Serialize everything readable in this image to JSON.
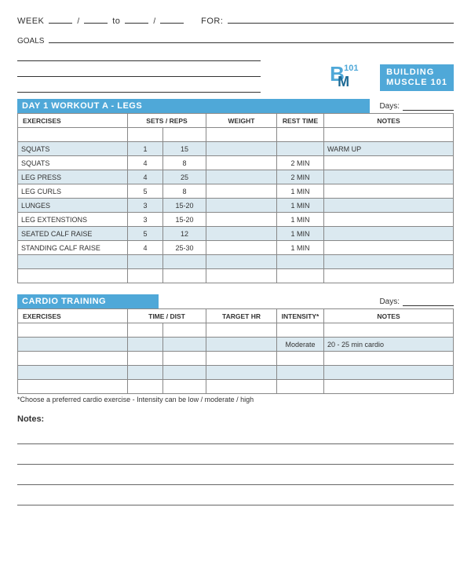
{
  "header": {
    "week_label": "WEEK",
    "to_label": "to",
    "for_label": "FOR:",
    "goals_label": "GOALS"
  },
  "logo": {
    "b": "B",
    "num": "101",
    "m": "M",
    "line1": "BUILDING",
    "line2": "MUSCLE 101"
  },
  "workout": {
    "title": "DAY 1 WORKOUT A - LEGS",
    "days_label": "Days:",
    "columns": {
      "exercises": "EXERCISES",
      "sets_reps": "SETS / REPS",
      "weight": "WEIGHT",
      "rest": "REST TIME",
      "notes": "NOTES"
    },
    "rows": [
      {
        "ex": "",
        "sets": "",
        "reps": "",
        "weight": "",
        "rest": "",
        "notes": "",
        "shade": false
      },
      {
        "ex": "SQUATS",
        "sets": "1",
        "reps": "15",
        "weight": "",
        "rest": "",
        "notes": "WARM UP",
        "shade": true
      },
      {
        "ex": "SQUATS",
        "sets": "4",
        "reps": "8",
        "weight": "",
        "rest": "2 MIN",
        "notes": "",
        "shade": false
      },
      {
        "ex": "LEG PRESS",
        "sets": "4",
        "reps": "25",
        "weight": "",
        "rest": "2 MIN",
        "notes": "",
        "shade": true
      },
      {
        "ex": "LEG CURLS",
        "sets": "5",
        "reps": "8",
        "weight": "",
        "rest": "1 MIN",
        "notes": "",
        "shade": false
      },
      {
        "ex": "LUNGES",
        "sets": "3",
        "reps": "15-20",
        "weight": "",
        "rest": "1 MIN",
        "notes": "",
        "shade": true
      },
      {
        "ex": "LEG EXTENSTIONS",
        "sets": "3",
        "reps": "15-20",
        "weight": "",
        "rest": "1 MIN",
        "notes": "",
        "shade": false
      },
      {
        "ex": "SEATED CALF RAISE",
        "sets": "5",
        "reps": "12",
        "weight": "",
        "rest": "1 MIN",
        "notes": "",
        "shade": true
      },
      {
        "ex": "STANDING CALF RAISE",
        "sets": "4",
        "reps": "25-30",
        "weight": "",
        "rest": "1 MIN",
        "notes": "",
        "shade": false
      },
      {
        "ex": "",
        "sets": "",
        "reps": "",
        "weight": "",
        "rest": "",
        "notes": "",
        "shade": true
      },
      {
        "ex": "",
        "sets": "",
        "reps": "",
        "weight": "",
        "rest": "",
        "notes": "",
        "shade": false
      }
    ]
  },
  "cardio": {
    "title": "CARDIO TRAINING",
    "days_label": "Days:",
    "columns": {
      "exercises": "EXERCISES",
      "time_dist": "TIME / DIST",
      "target_hr": "TARGET HR",
      "intensity": "INTENSITY*",
      "notes": "NOTES"
    },
    "rows": [
      {
        "ex": "",
        "td": "",
        "hr": "",
        "int": "",
        "notes": "",
        "shade": false
      },
      {
        "ex": "",
        "td": "",
        "hr": "",
        "int": "Moderate",
        "notes": "20 - 25 min cardio",
        "shade": true
      },
      {
        "ex": "",
        "td": "",
        "hr": "",
        "int": "",
        "notes": "",
        "shade": false
      },
      {
        "ex": "",
        "td": "",
        "hr": "",
        "int": "",
        "notes": "",
        "shade": true
      },
      {
        "ex": "",
        "td": "",
        "hr": "",
        "int": "",
        "notes": "",
        "shade": false
      }
    ],
    "footnote": "*Choose a preferred cardio exercise - Intensity can be low / moderate / high"
  },
  "notes": {
    "label": "Notes:"
  },
  "colors": {
    "brand_blue": "#4fa8d8",
    "dark_blue": "#1d6a95",
    "shade": "#dbe9f0",
    "border": "#888888"
  }
}
